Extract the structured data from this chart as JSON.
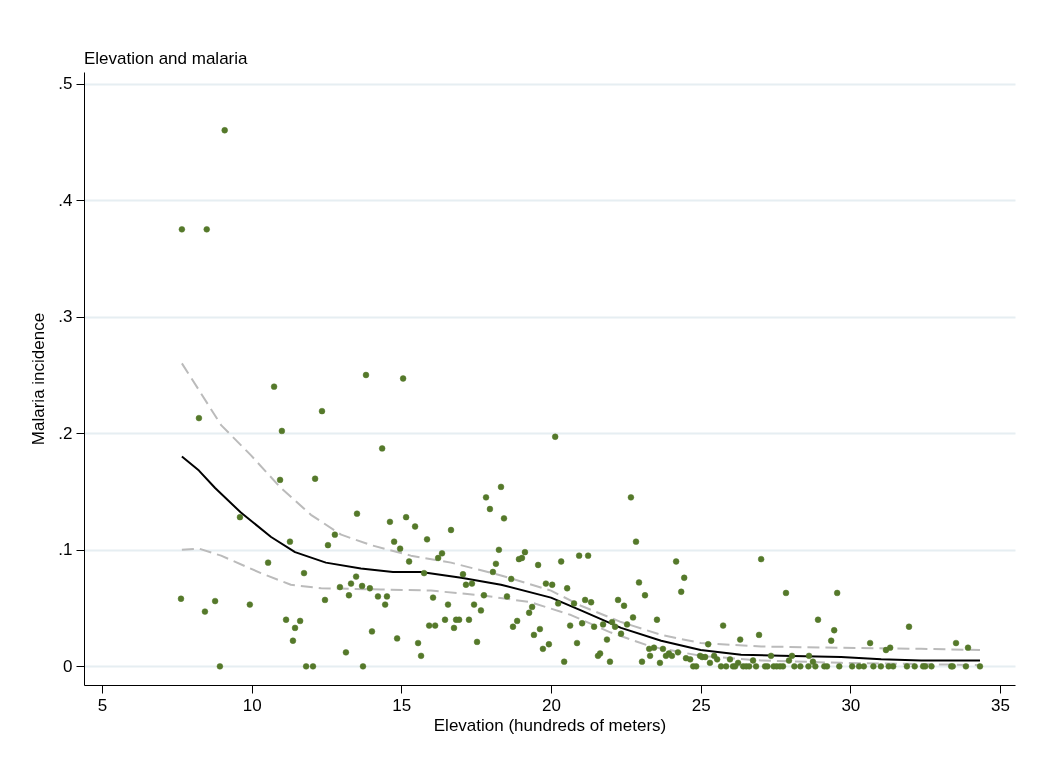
{
  "chart_data": {
    "type": "scatter",
    "title": "Elevation and malaria",
    "xlabel": "Elevation (hundreds of meters)",
    "ylabel": "Malaria incidence",
    "xlim": [
      4.4,
      35.5
    ],
    "ylim": [
      -0.016,
      0.51
    ],
    "xticks": [
      5,
      10,
      15,
      20,
      25,
      30,
      35
    ],
    "yticks": [
      0,
      {
        "value": 0.1,
        "label": ".1"
      },
      {
        "value": 0.2,
        "label": ".2"
      },
      {
        "value": 0.3,
        "label": ".3"
      },
      {
        "value": 0.4,
        "label": ".4"
      },
      {
        "value": 0.5,
        "label": ".5"
      }
    ],
    "grid": "y",
    "series": [
      {
        "type": "scatter",
        "marker": "circle",
        "color": "#55792a",
        "x": [
          7.67,
          8.5,
          9.1,
          8.24,
          7.64,
          8.78,
          8.44,
          8.94,
          9.61,
          9.94,
          10.75,
          10.55,
          10.95,
          11.01,
          12.35,
          13.82,
          15.06,
          14.36,
          12.12,
          11.28,
          12.55,
          12.78,
          13.52,
          14.62,
          15.16,
          15.46,
          15.86,
          16.66,
          14.76,
          14.96,
          16.36,
          16.23,
          15.26,
          11.75,
          13.49,
          13.32,
          13.69,
          13.95,
          12.95,
          13.25,
          14.22,
          14.52,
          14.46,
          15.76,
          16.06,
          16.56,
          12.45,
          11.15,
          11.62,
          11.45,
          11.38,
          14.02,
          14.86,
          15.56,
          15.66,
          13.15,
          15.93,
          16.13,
          16.46,
          16.83,
          16.93,
          16.76,
          11.82,
          12.05,
          13.72,
          20.14,
          18.33,
          17.83,
          17.96,
          18.43,
          22.67,
          22.84,
          18.26,
          18.16,
          18.06,
          17.06,
          17.16,
          17.36,
          17.76,
          18.67,
          18.53,
          18.93,
          19.03,
          19.13,
          19.57,
          20.34,
          20.94,
          21.24,
          19.83,
          20.04,
          20.54,
          17.43,
          17.66,
          19.37,
          19.27,
          20.24,
          20.77,
          21.14,
          21.34,
          17.26,
          17.53,
          18.73,
          18.87,
          19.43,
          19.63,
          19.73,
          19.93,
          20.44,
          20.64,
          20.87,
          21.04,
          21.44,
          21.74,
          21.87,
          21.57,
          21.64,
          21.97,
          22.04,
          22.14,
          22.24,
          22.44,
          22.34,
          22.54,
          22.74,
          22.94,
          23.14,
          23.54,
          23.04,
          23.28,
          23.31,
          23.44,
          23.64,
          23.74,
          23.84,
          23.94,
          24.04,
          24.24,
          24.18,
          24.45,
          24.35,
          24.51,
          24.65,
          24.75,
          24.85,
          24.98,
          25.05,
          25.15,
          25.25,
          25.31,
          25.45,
          25.55,
          25.75,
          25.68,
          25.85,
          25.98,
          26.08,
          26.15,
          26.25,
          26.32,
          26.42,
          26.52,
          26.62,
          27.02,
          27.85,
          29.56,
          28.92,
          29.46,
          29.36,
          31.96,
          30.66,
          31.19,
          31.33,
          33.53,
          33.93,
          26.95,
          26.75,
          27.35,
          28.05,
          27.95,
          28.62,
          28.75,
          26.85,
          27.15,
          27.23,
          27.44,
          27.54,
          27.65,
          27.75,
          28.13,
          28.33,
          28.6,
          28.83,
          29.13,
          29.22,
          29.63,
          30.06,
          30.29,
          30.45,
          30.77,
          31.02,
          31.28,
          31.43,
          31.89,
          32.15,
          32.43,
          32.5,
          32.71,
          33.37,
          33.42,
          33.86,
          34.33
        ],
        "values": [
          0.375,
          0.375,
          0.46,
          0.213,
          0.058,
          0.056,
          0.047,
          0,
          0.128,
          0.053,
          0.24,
          0.089,
          0.16,
          0.202,
          0.219,
          0.25,
          0.247,
          0.187,
          0.161,
          0.107,
          0.104,
          0.113,
          0.131,
          0.124,
          0.128,
          0.12,
          0.109,
          0.117,
          0.107,
          0.101,
          0.097,
          0.093,
          0.09,
          0.08,
          0.077,
          0.071,
          0.069,
          0.067,
          0.068,
          0.061,
          0.06,
          0.06,
          0.053,
          0.08,
          0.059,
          0.053,
          0.057,
          0.04,
          0.039,
          0.033,
          0.022,
          0.03,
          0.024,
          0.02,
          0.009,
          0.012,
          0.035,
          0.035,
          0.04,
          0.04,
          0.04,
          0.033,
          0,
          0,
          0,
          0.197,
          0.154,
          0.145,
          0.135,
          0.127,
          0.145,
          0.107,
          0.1,
          0.088,
          0.081,
          0.079,
          0.07,
          0.071,
          0.061,
          0.075,
          0.06,
          0.092,
          0.093,
          0.098,
          0.087,
          0.09,
          0.095,
          0.095,
          0.071,
          0.07,
          0.067,
          0.053,
          0.048,
          0.051,
          0.046,
          0.054,
          0.054,
          0.057,
          0.055,
          0.04,
          0.021,
          0.034,
          0.039,
          0.027,
          0.032,
          0.015,
          0.019,
          0.004,
          0.035,
          0.02,
          0.037,
          0.034,
          0.036,
          0.023,
          0.009,
          0.011,
          0.004,
          0.038,
          0.034,
          0.057,
          0.052,
          0.028,
          0.036,
          0.042,
          0.072,
          0.061,
          0.04,
          0.004,
          0.015,
          0.009,
          0.016,
          0.003,
          0.015,
          0.009,
          0.011,
          0.009,
          0.012,
          0.09,
          0.076,
          0.064,
          0.007,
          0.006,
          0,
          0,
          0.009,
          0.008,
          0.008,
          0.019,
          0.003,
          0.009,
          0.006,
          0.035,
          0,
          0,
          0.006,
          0,
          0,
          0.003,
          0.023,
          0,
          0,
          0,
          0.092,
          0.063,
          0.063,
          0.04,
          0.031,
          0.022,
          0.034,
          0.02,
          0.014,
          0.016,
          0.02,
          0.016,
          0.027,
          0.005,
          0.009,
          0.009,
          0.005,
          0.009,
          0.004,
          0,
          0,
          0,
          0,
          0,
          0,
          0,
          0,
          0,
          0,
          0,
          0,
          0,
          0,
          0,
          0,
          0,
          0,
          0,
          0,
          0,
          0,
          0,
          0,
          0,
          0,
          0,
          0,
          0,
          0
        ]
      },
      {
        "type": "line",
        "color": "#000000",
        "line_style": "solid",
        "x": [
          7.67,
          8.24,
          8.78,
          9.64,
          10.65,
          11.45,
          12.48,
          13.65,
          14.72,
          15.66,
          17.0,
          18.33,
          20.0,
          21.0,
          22.34,
          23.68,
          25.0,
          26.35,
          27.69,
          29.69,
          31.03,
          32.36,
          34.33
        ],
        "values": [
          0.18,
          0.168,
          0.153,
          0.132,
          0.111,
          0.098,
          0.089,
          0.084,
          0.081,
          0.081,
          0.076,
          0.07,
          0.059,
          0.048,
          0.033,
          0.022,
          0.014,
          0.01,
          0.009,
          0.008,
          0.006,
          0.005,
          0.005
        ]
      },
      {
        "type": "line",
        "color": "#bbbbbb",
        "line_style": "dashed",
        "x": [
          7.67,
          8.24,
          8.98,
          9.98,
          10.98,
          11.98,
          12.99,
          13.99,
          15.32,
          16.66,
          18.33,
          20.0,
          21.0,
          22.34,
          23.68,
          25.0,
          27.02,
          29.69,
          32.36,
          34.33
        ],
        "values": [
          0.26,
          0.237,
          0.207,
          0.181,
          0.153,
          0.13,
          0.113,
          0.104,
          0.095,
          0.089,
          0.078,
          0.065,
          0.052,
          0.038,
          0.027,
          0.02,
          0.017,
          0.016,
          0.015,
          0.014
        ]
      },
      {
        "type": "line",
        "color": "#bbbbbb",
        "line_style": "dashed",
        "x": [
          7.67,
          8.24,
          8.98,
          10.31,
          11.31,
          12.32,
          14.32,
          15.99,
          17.66,
          19.33,
          20.67,
          22.0,
          23.34,
          25.0,
          27.02,
          29.69,
          32.36,
          34.33
        ],
        "values": [
          0.1,
          0.101,
          0.095,
          0.08,
          0.07,
          0.067,
          0.066,
          0.065,
          0.061,
          0.055,
          0.044,
          0.029,
          0.017,
          0.009,
          0.005,
          0.003,
          0.002,
          0.001
        ]
      }
    ]
  }
}
